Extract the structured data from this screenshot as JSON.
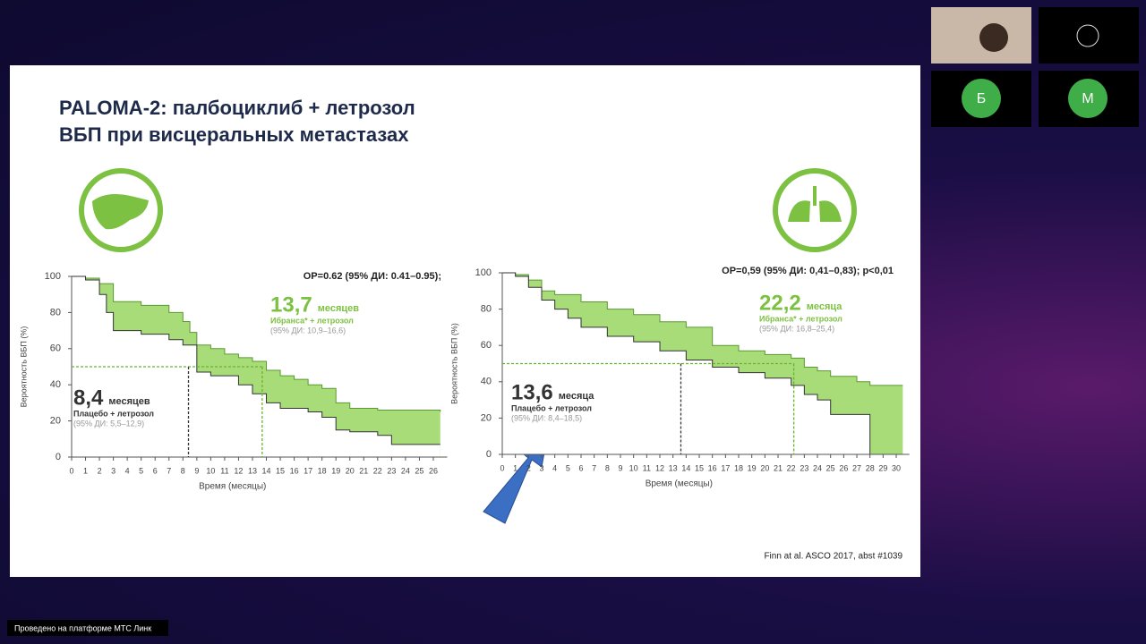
{
  "slide": {
    "title_lines": [
      "PALOMA-2: палбоциклиб + летрозол",
      "ВБП при висцеральных метастазах"
    ],
    "citation": "Finn at al. ASCO 2017, abst #1039",
    "charts": [
      {
        "type": "line",
        "hr_text": "ОР=0.62 (95% ДИ: 0.41–0.95);",
        "y_label": "Вероятность ВБП (%)",
        "x_label": "Время (месяцы)",
        "xlim": [
          0,
          27
        ],
        "ylim": [
          0,
          100
        ],
        "xticks": [
          0,
          1,
          2,
          3,
          4,
          5,
          6,
          7,
          8,
          9,
          10,
          11,
          12,
          13,
          14,
          15,
          16,
          17,
          18,
          19,
          20,
          21,
          22,
          23,
          24,
          25,
          26
        ],
        "yticks": [
          0,
          20,
          40,
          60,
          80,
          100
        ],
        "series": [
          {
            "name": "Ибранса* + летрозол",
            "color": "#7dc142",
            "x": [
              0,
              1,
              2,
              3,
              5,
              7,
              8,
              8.5,
              9,
              10,
              11,
              12,
              13,
              14,
              15,
              16,
              17,
              18,
              19,
              20,
              22,
              24,
              26.5
            ],
            "values": [
              100,
              99,
              96,
              86,
              84,
              80,
              75,
              69,
              62,
              60,
              57,
              55,
              53,
              48,
              45,
              43,
              40,
              38,
              30,
              27,
              26,
              26,
              25
            ]
          },
          {
            "name": "Плацебо + летрозол",
            "color": "#333333",
            "x": [
              0,
              1,
              2,
              2.5,
              3,
              5,
              7,
              8,
              9,
              10,
              12,
              13,
              14,
              15,
              17,
              18,
              19,
              20,
              22,
              23,
              26.5
            ],
            "values": [
              100,
              98,
              90,
              80,
              70,
              68,
              65,
              62,
              47,
              45,
              40,
              35,
              30,
              27,
              25,
              22,
              15,
              14,
              12,
              7,
              7
            ]
          }
        ],
        "medians": [
          {
            "value": 13.7,
            "label": "13,7",
            "unit": "месяцев",
            "ci": "(95% ДИ: 10,9–16,6)"
          },
          {
            "value": 8.4,
            "label": "8,4",
            "unit": "месяцев",
            "ci": "(95% ДИ: 5,5–12,9)"
          }
        ]
      },
      {
        "type": "line",
        "hr_text": "ОР=0,59 (95% ДИ: 0,41–0,83); p<0,01",
        "y_label": "Вероятность ВБП (%)",
        "x_label": "Время (месяцы)",
        "xlim": [
          0,
          31
        ],
        "ylim": [
          0,
          100
        ],
        "xticks": [
          0,
          1,
          2,
          3,
          4,
          5,
          6,
          7,
          8,
          9,
          10,
          11,
          12,
          13,
          14,
          15,
          16,
          17,
          18,
          19,
          20,
          21,
          22,
          23,
          24,
          25,
          26,
          27,
          28,
          29,
          30
        ],
        "yticks": [
          0,
          20,
          40,
          60,
          80,
          100
        ],
        "series": [
          {
            "name": "Ибранса* + летрозол",
            "color": "#7dc142",
            "x": [
              0,
              1,
              2,
              3,
              4,
              6,
              8,
              10,
              12,
              14,
              16,
              18,
              20,
              22,
              23,
              24,
              25,
              27,
              28,
              30.5
            ],
            "values": [
              100,
              99,
              96,
              90,
              88,
              84,
              80,
              77,
              73,
              70,
              60,
              57,
              55,
              53,
              48,
              46,
              43,
              40,
              38,
              38
            ]
          },
          {
            "name": "Плацебо + летрозол",
            "color": "#333333",
            "x": [
              0,
              1,
              2,
              3,
              4,
              5,
              6,
              8,
              10,
              12,
              14,
              16,
              18,
              20,
              22,
              23,
              24,
              25,
              27,
              28,
              30.5
            ],
            "values": [
              100,
              98,
              92,
              85,
              80,
              75,
              70,
              65,
              62,
              57,
              52,
              48,
              45,
              42,
              38,
              33,
              30,
              22,
              22,
              0,
              0
            ]
          }
        ],
        "medians": [
          {
            "value": 22.2,
            "label": "22,2",
            "unit": "месяца",
            "ci": "(95% ДИ: 16,8–25,4)"
          },
          {
            "value": 13.6,
            "label": "13,6",
            "unit": "месяца",
            "ci": "(95% ДИ: 8,4–18,5)"
          }
        ]
      }
    ]
  },
  "participants": [
    "Б",
    "М"
  ],
  "footer": "Проведено на платформе МТС Линк"
}
